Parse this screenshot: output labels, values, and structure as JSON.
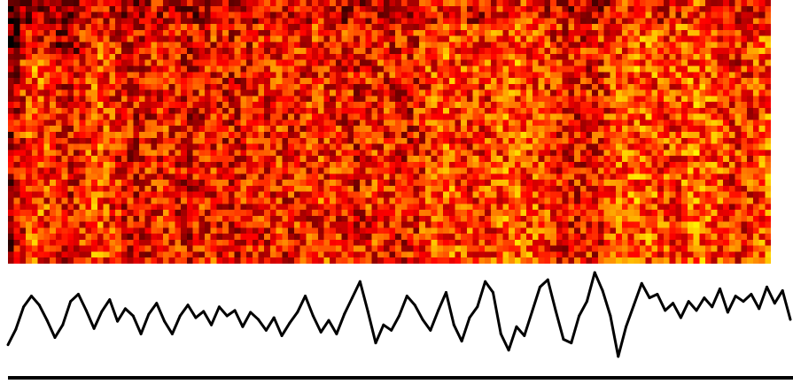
{
  "chart_data": [
    {
      "type": "heatmap",
      "colormap": "hot",
      "grid": false,
      "column_intensity": [
        0.3,
        0.5,
        0.62,
        0.55,
        0.48,
        0.45,
        0.52,
        0.6,
        0.55,
        0.48,
        0.44,
        0.45,
        0.5,
        0.5,
        0.46,
        0.42,
        0.48,
        0.5,
        0.44,
        0.46,
        0.48,
        0.5,
        0.52,
        0.46,
        0.5,
        0.52,
        0.54,
        0.5,
        0.48,
        0.46,
        0.52,
        0.5,
        0.48,
        0.45,
        0.5,
        0.56,
        0.62,
        0.58,
        0.55,
        0.52,
        0.56,
        0.6,
        0.64,
        0.6,
        0.56,
        0.52,
        0.48,
        0.46,
        0.48,
        0.5,
        0.54,
        0.6,
        0.64,
        0.62,
        0.58,
        0.56,
        0.6,
        0.66,
        0.62,
        0.58,
        0.52,
        0.5,
        0.56,
        0.62
      ]
    },
    {
      "type": "line",
      "color": "#000000",
      "grid": false,
      "ylim": [
        0,
        1
      ],
      "values": [
        0.18,
        0.35,
        0.6,
        0.72,
        0.62,
        0.45,
        0.26,
        0.4,
        0.66,
        0.74,
        0.56,
        0.36,
        0.55,
        0.68,
        0.44,
        0.58,
        0.5,
        0.3,
        0.52,
        0.64,
        0.44,
        0.3,
        0.5,
        0.62,
        0.48,
        0.55,
        0.4,
        0.6,
        0.5,
        0.56,
        0.38,
        0.54,
        0.46,
        0.34,
        0.48,
        0.28,
        0.42,
        0.54,
        0.72,
        0.5,
        0.32,
        0.45,
        0.3,
        0.52,
        0.7,
        0.88,
        0.55,
        0.2,
        0.4,
        0.34,
        0.5,
        0.72,
        0.62,
        0.46,
        0.34,
        0.56,
        0.76,
        0.4,
        0.22,
        0.48,
        0.6,
        0.88,
        0.76,
        0.3,
        0.12,
        0.38,
        0.28,
        0.55,
        0.82,
        0.9,
        0.56,
        0.24,
        0.2,
        0.5,
        0.66,
        0.98,
        0.78,
        0.5,
        0.05,
        0.38,
        0.62,
        0.86,
        0.7,
        0.74,
        0.56,
        0.64,
        0.48,
        0.66,
        0.56,
        0.7,
        0.6,
        0.8,
        0.54,
        0.72,
        0.66,
        0.74,
        0.58,
        0.82,
        0.64,
        0.78,
        0.46
      ]
    }
  ],
  "colors": {
    "line": "#000000",
    "background": "#ffffff",
    "baseline": "#000000"
  }
}
